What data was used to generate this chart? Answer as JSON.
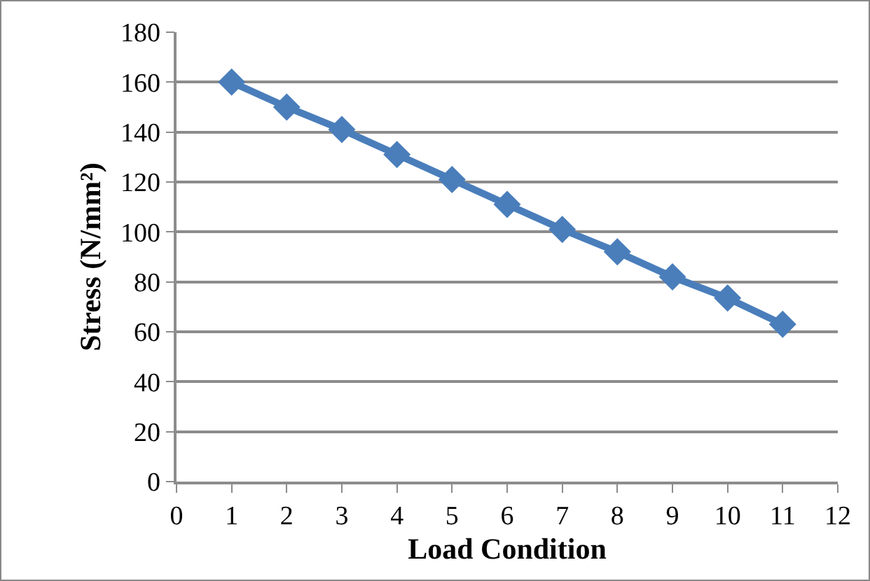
{
  "chart_data": {
    "type": "line",
    "xlabel": "Load Condition",
    "ylabel": "Stress (N/mm²)",
    "x": [
      1,
      2,
      3,
      4,
      5,
      6,
      7,
      8,
      9,
      10,
      11
    ],
    "series": [
      {
        "color": "#4a7ebb",
        "values": [
          160,
          150,
          141,
          131,
          121,
          111,
          101,
          92,
          82,
          73.5,
          63
        ]
      }
    ],
    "xlim": [
      0,
      12
    ],
    "xticks": [
      0,
      1,
      2,
      3,
      4,
      5,
      6,
      7,
      8,
      9,
      10,
      11,
      12
    ],
    "ylim": [
      0,
      180
    ],
    "yticks": [
      0,
      20,
      40,
      60,
      80,
      100,
      120,
      140,
      160,
      180
    ],
    "grid": "y",
    "legend": false,
    "marker": "diamond",
    "line_style": "solid"
  }
}
